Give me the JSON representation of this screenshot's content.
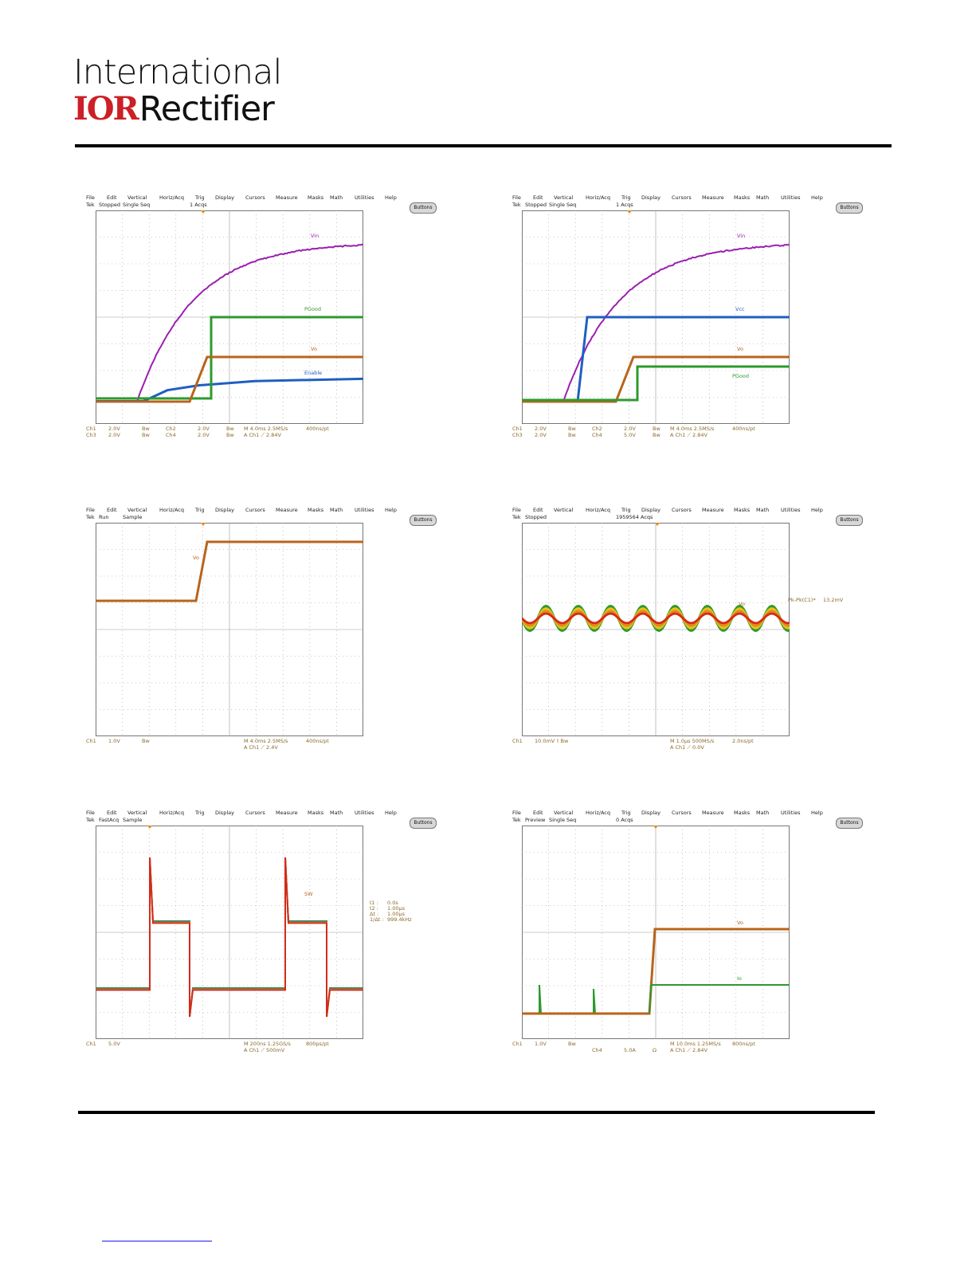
{
  "logo": {
    "line1": "International",
    "mark": "IOR",
    "line2": "Rectifier"
  },
  "menu": [
    "File",
    "Edit",
    "Vertical",
    "Horiz/Acq",
    "Trig",
    "Display",
    "Cursors",
    "Measure",
    "Masks",
    "Math",
    "Utilities",
    "Help"
  ],
  "buttons_label": "Buttons",
  "colors": {
    "vin": "#9b1fb0",
    "vcc": "#1f5fc0",
    "pgood": "#2e9a2e",
    "vo": "#b8641c",
    "grid": "#888888",
    "logo_red": "#cc1f26"
  },
  "scopes": [
    {
      "id": "s1",
      "status": {
        "tek": "Tek",
        "state": "Stopped",
        "mode": "Single Seq",
        "acqs": "1 Acqs"
      },
      "traces": [
        {
          "name": "Vin",
          "color": "vin"
        },
        {
          "name": "PGood",
          "color": "pgood"
        },
        {
          "name": "Vo",
          "color": "vo"
        },
        {
          "name": "Enable",
          "color": "vcc"
        }
      ],
      "footer": {
        "row1": [
          "Ch1",
          "2.0V",
          "Bw",
          "Ch2",
          "2.0V",
          "Bw",
          "M 4.0ms 2.5MS/s",
          "400ns/pt"
        ],
        "row2": [
          "Ch3",
          "2.0V",
          "Bw",
          "Ch4",
          "2.0V",
          "Bw",
          "A  Ch1  ⟋  2.84V"
        ]
      }
    },
    {
      "id": "s2",
      "status": {
        "tek": "Tek",
        "state": "Stopped",
        "mode": "Single Seq",
        "acqs": "1 Acqs"
      },
      "traces": [
        {
          "name": "Vin",
          "color": "vin"
        },
        {
          "name": "Vcc",
          "color": "vcc"
        },
        {
          "name": "Vo",
          "color": "vo"
        },
        {
          "name": "PGood",
          "color": "pgood"
        }
      ],
      "footer": {
        "row1": [
          "Ch1",
          "2.0V",
          "Bw",
          "Ch2",
          "2.0V",
          "Bw",
          "M 4.0ms 2.5MS/s",
          "400ns/pt"
        ],
        "row2": [
          "Ch3",
          "2.0V",
          "Bw",
          "Ch4",
          "5.0V",
          "Bw",
          "A  Ch1  ⟋  2.84V"
        ]
      }
    },
    {
      "id": "s3",
      "status": {
        "tek": "Tek",
        "state": "Run",
        "mode": "Sample",
        "acqs": ""
      },
      "traces": [
        {
          "name": "Vo",
          "color": "vo"
        }
      ],
      "footer": {
        "row1": [
          "Ch1",
          "1.0V",
          "Bw",
          "",
          "",
          "",
          "M 4.0ms 2.5MS/s",
          "400ns/pt"
        ],
        "row2": [
          "",
          "",
          "",
          "",
          "",
          "",
          "A  Ch1  ⟋  2.4V"
        ]
      }
    },
    {
      "id": "s4",
      "status": {
        "tek": "Tek",
        "state": "Stopped",
        "mode": "",
        "acqs": "1959564 Acqs"
      },
      "traces": [
        {
          "name": "Vo",
          "color": "vo"
        }
      ],
      "measurement": {
        "label": "Pk-Pk(C1)*",
        "value": "13.2mV"
      },
      "footer": {
        "row1": [
          "Ch1",
          "10.0mV ⌇ Bw",
          "",
          "",
          "",
          "",
          "M 1.0μs 500MS/s",
          "2.0ns/pt"
        ],
        "row2": [
          "",
          "",
          "",
          "",
          "",
          "",
          "A  Ch1  ⟋  0.0V"
        ]
      }
    },
    {
      "id": "s5",
      "status": {
        "tek": "Tek",
        "state": "FastAcq",
        "mode": "Sample",
        "acqs": ""
      },
      "traces": [
        {
          "name": "SW",
          "color": "vo"
        }
      ],
      "cursors": [
        {
          "k": "t1 :",
          "v": "0.0s"
        },
        {
          "k": "t2 :",
          "v": "1.00μs"
        },
        {
          "k": "Δt :",
          "v": "1.00μs"
        },
        {
          "k": "1/Δt :",
          "v": "999.4kHz"
        }
      ],
      "footer": {
        "row1": [
          "Ch1",
          "5.0V",
          "",
          "",
          "",
          "",
          "M 200ns 1.25GS/s",
          "800ps/pt"
        ],
        "row2": [
          "",
          "",
          "",
          "",
          "",
          "",
          "A  Ch1  ⟋  500mV"
        ]
      }
    },
    {
      "id": "s6",
      "status": {
        "tek": "Tek",
        "state": "Preview",
        "mode": "Single Seq",
        "acqs": "0 Acqs"
      },
      "traces": [
        {
          "name": "Vo",
          "color": "vo"
        },
        {
          "name": "Io",
          "color": "pgood"
        }
      ],
      "footer": {
        "row1": [
          "Ch1",
          "1.0V",
          "Bw",
          "",
          "",
          "",
          "M 10.0ms 1.25MS/s",
          "800ns/pt"
        ],
        "row2": [
          "",
          "",
          "",
          "Ch4",
          "5.0A",
          "Ω",
          "A  Ch1  ⟋  2.84V"
        ]
      }
    }
  ]
}
